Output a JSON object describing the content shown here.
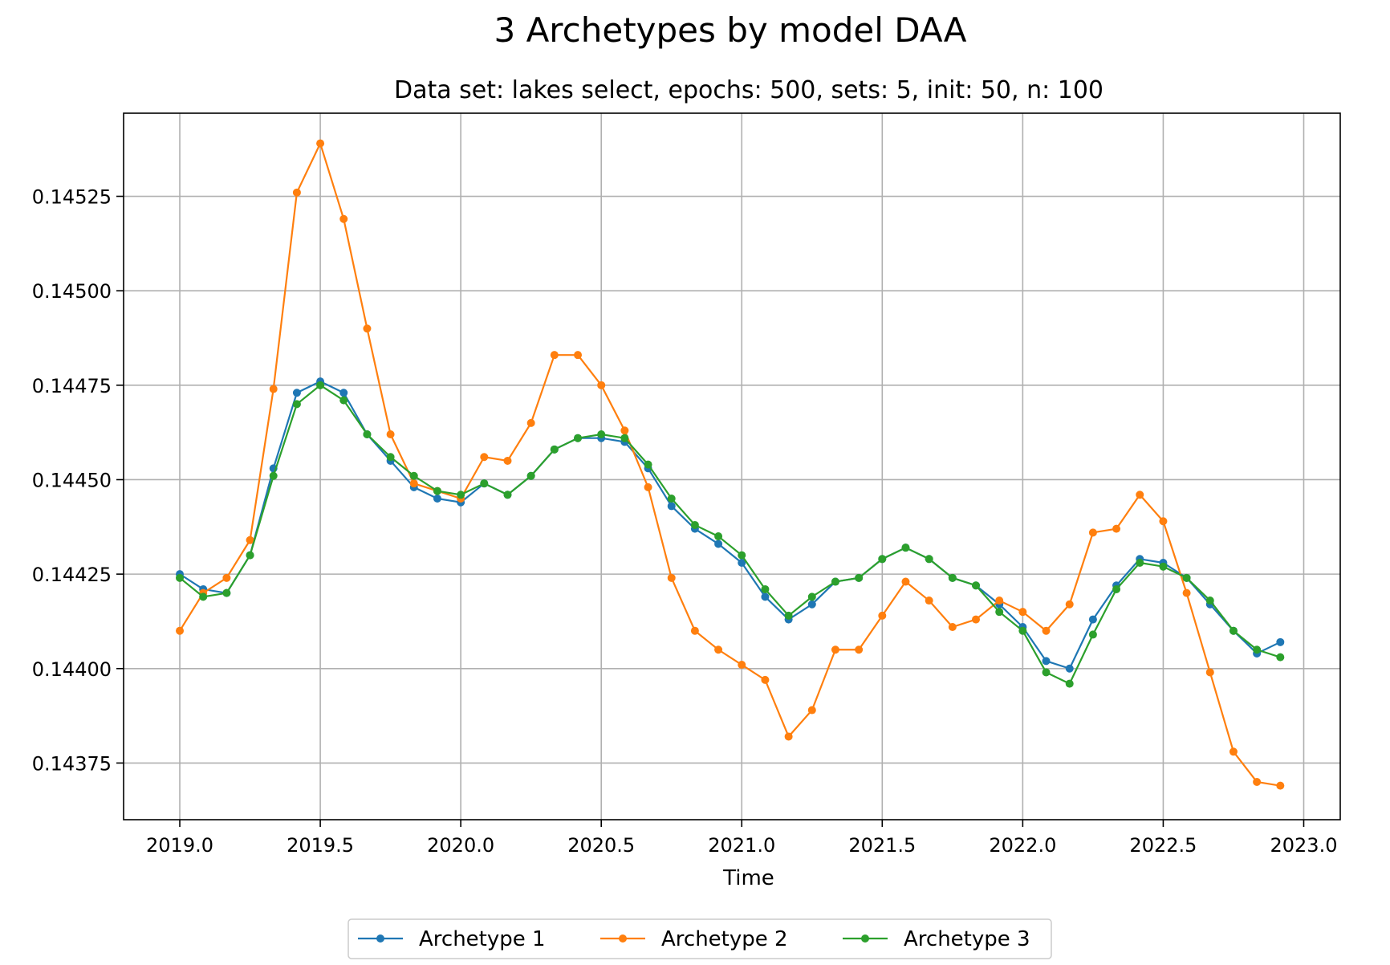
{
  "chart_data": {
    "type": "line",
    "title": "3 Archetypes by model DAA",
    "subtitle": "Data set: lakes select, epochs: 500, sets: 5, init: 50, n: 100",
    "xlabel": "Time",
    "ylabel": "",
    "xlim": [
      2018.8,
      2023.13
    ],
    "ylim": [
      0.1436,
      0.14547
    ],
    "x_ticks": [
      2019.0,
      2019.5,
      2020.0,
      2020.5,
      2021.0,
      2021.5,
      2022.0,
      2022.5,
      2023.0
    ],
    "x_tick_labels": [
      "2019.0",
      "2019.5",
      "2020.0",
      "2020.5",
      "2021.0",
      "2021.5",
      "2022.0",
      "2022.5",
      "2023.0"
    ],
    "y_ticks": [
      0.14375,
      0.144,
      0.14425,
      0.1445,
      0.14475,
      0.145,
      0.14525
    ],
    "y_tick_labels": [
      "0.14375",
      "0.14400",
      "0.14425",
      "0.14450",
      "0.14475",
      "0.14500",
      "0.14525"
    ],
    "grid": true,
    "legend_position": "bottom-center",
    "x": [
      2019.0,
      2019.0833,
      2019.1667,
      2019.25,
      2019.3333,
      2019.4167,
      2019.5,
      2019.5833,
      2019.6667,
      2019.75,
      2019.8333,
      2019.9167,
      2020.0,
      2020.0833,
      2020.1667,
      2020.25,
      2020.3333,
      2020.4167,
      2020.5,
      2020.5833,
      2020.6667,
      2020.75,
      2020.8333,
      2020.9167,
      2021.0,
      2021.0833,
      2021.1667,
      2021.25,
      2021.3333,
      2021.4167,
      2021.5,
      2021.5833,
      2021.6667,
      2021.75,
      2021.8333,
      2021.9167,
      2022.0,
      2022.0833,
      2022.1667,
      2022.25,
      2022.3333,
      2022.4167,
      2022.5,
      2022.5833,
      2022.6667,
      2022.75,
      2022.8333,
      2022.9167
    ],
    "series": [
      {
        "name": "Archetype 1",
        "color": "#1f77b4",
        "values": [
          0.14425,
          0.14421,
          0.1442,
          0.1443,
          0.14453,
          0.14473,
          0.14476,
          0.14473,
          0.14462,
          0.14455,
          0.14448,
          0.14445,
          0.14444,
          0.14449,
          0.14446,
          0.14451,
          0.14458,
          0.14461,
          0.14461,
          0.1446,
          0.14453,
          0.14443,
          0.14437,
          0.14433,
          0.14428,
          0.14419,
          0.14413,
          0.14417,
          0.14423,
          0.14424,
          0.14429,
          0.14432,
          0.14429,
          0.14424,
          0.14422,
          0.14417,
          0.14411,
          0.14402,
          0.144,
          0.14413,
          0.14422,
          0.14429,
          0.14428,
          0.14424,
          0.14417,
          0.1441,
          0.14404,
          0.14407
        ]
      },
      {
        "name": "Archetype 2",
        "color": "#ff7f0e",
        "values": [
          0.1441,
          0.1442,
          0.14424,
          0.14434,
          0.14474,
          0.14526,
          0.14539,
          0.14519,
          0.1449,
          0.14462,
          0.14449,
          0.14447,
          0.14445,
          0.14456,
          0.14455,
          0.14465,
          0.14483,
          0.14483,
          0.14475,
          0.14463,
          0.14448,
          0.14424,
          0.1441,
          0.14405,
          0.14401,
          0.14397,
          0.14382,
          0.14389,
          0.14405,
          0.14405,
          0.14414,
          0.14423,
          0.14418,
          0.14411,
          0.14413,
          0.14418,
          0.14415,
          0.1441,
          0.14417,
          0.14436,
          0.14437,
          0.14446,
          0.14439,
          0.1442,
          0.14399,
          0.14378,
          0.1437,
          0.14369
        ]
      },
      {
        "name": "Archetype 3",
        "color": "#2ca02c",
        "values": [
          0.14424,
          0.14419,
          0.1442,
          0.1443,
          0.14451,
          0.1447,
          0.14475,
          0.14471,
          0.14462,
          0.14456,
          0.14451,
          0.14447,
          0.14446,
          0.14449,
          0.14446,
          0.14451,
          0.14458,
          0.14461,
          0.14462,
          0.14461,
          0.14454,
          0.14445,
          0.14438,
          0.14435,
          0.1443,
          0.14421,
          0.14414,
          0.14419,
          0.14423,
          0.14424,
          0.14429,
          0.14432,
          0.14429,
          0.14424,
          0.14422,
          0.14415,
          0.1441,
          0.14399,
          0.14396,
          0.14409,
          0.14421,
          0.14428,
          0.14427,
          0.14424,
          0.14418,
          0.1441,
          0.14405,
          0.14403
        ]
      }
    ]
  }
}
